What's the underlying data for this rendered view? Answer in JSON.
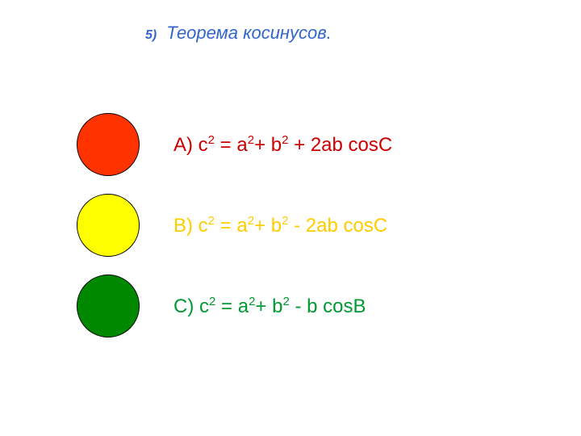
{
  "header": {
    "number": "5)",
    "title": "Теорема косинусов."
  },
  "options": {
    "a": {
      "circle_fill": "#ff3300",
      "text_color": "#cc0000",
      "label": "А)",
      "base1": "с",
      "equals": " = ",
      "a_term": "a",
      "plus1": "+ ",
      "b_term": "b",
      "tail": " + 2ab cosC"
    },
    "b": {
      "circle_fill": "#ffff00",
      "text_color": "#ffcc00",
      "label": "В)",
      "base1": "с",
      "equals": " = ",
      "a_term": "a",
      "plus1": "+ ",
      "b_term": "b",
      "tail": " - 2ab cosC"
    },
    "c": {
      "circle_fill": "#008800",
      "text_color": "#009933",
      "label": "С)",
      "base1": "с",
      "equals": " = ",
      "a_term": "a",
      "plus1": "+ ",
      "b_term": "b",
      "tail": " - b cosB"
    }
  },
  "styling": {
    "background_color": "#ffffff",
    "header_color": "#3366cc",
    "circle_border": "#000000",
    "circle_size": 78,
    "main_fontsize": 24,
    "sup_fontsize": 15,
    "title_fontsize": 22,
    "number_fontsize": 16
  }
}
